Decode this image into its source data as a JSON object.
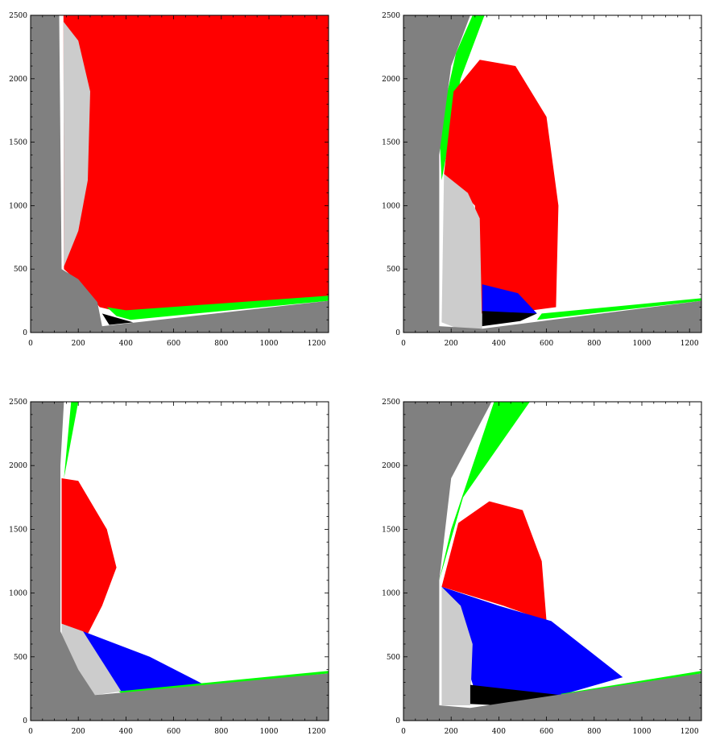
{
  "colors": {
    "background": "#ffffff",
    "solid": "#808080",
    "light_region": "#cccccc",
    "red_region": "#ff0000",
    "green_region": "#00ff00",
    "blue_region": "#0000ff",
    "black_region": "#000000"
  },
  "chart_data": [
    {
      "type": "heatmap",
      "panel": "top-left",
      "xlim": [
        0,
        1250
      ],
      "ylim": [
        0,
        2500
      ],
      "xticks": [
        0,
        200,
        400,
        600,
        800,
        1000,
        1200
      ],
      "yticks": [
        0,
        500,
        1000,
        1500,
        2000,
        2500
      ],
      "xtick_labels": [
        "0",
        "200",
        "400",
        "600",
        "800",
        "1000",
        "1200"
      ],
      "ytick_labels": [
        "0",
        "500",
        "1000",
        "1500",
        "2000",
        "2500"
      ],
      "regions": [
        {
          "color": "red",
          "points": [
            [
              138,
              2500
            ],
            [
              1250,
              2500
            ],
            [
              1250,
              280
            ],
            [
              400,
              150
            ],
            [
              290,
              200
            ],
            [
              200,
              400
            ],
            [
              140,
              500
            ]
          ]
        },
        {
          "color": "light",
          "points": [
            [
              138,
              2450
            ],
            [
              200,
              2300
            ],
            [
              250,
              1900
            ],
            [
              240,
              1200
            ],
            [
              200,
              800
            ],
            [
              140,
              520
            ]
          ]
        },
        {
          "color": "green",
          "points": [
            [
              320,
              200
            ],
            [
              400,
              175
            ],
            [
              1250,
              290
            ],
            [
              1250,
              250
            ],
            [
              420,
              100
            ],
            [
              360,
              130
            ]
          ]
        },
        {
          "color": "black",
          "points": [
            [
              300,
              150
            ],
            [
              330,
              60
            ],
            [
              430,
              80
            ]
          ]
        },
        {
          "color": "solid",
          "points": [
            [
              0,
              2500
            ],
            [
              120,
              2500
            ],
            [
              130,
              500
            ],
            [
              200,
              420
            ],
            [
              280,
              240
            ],
            [
              300,
              50
            ],
            [
              1250,
              250
            ],
            [
              1250,
              0
            ],
            [
              0,
              0
            ]
          ]
        }
      ]
    },
    {
      "type": "heatmap",
      "panel": "top-right",
      "xlim": [
        0,
        1250
      ],
      "ylim": [
        0,
        2500
      ],
      "xticks": [
        0,
        200,
        400,
        600,
        800,
        1000,
        1200
      ],
      "yticks": [
        0,
        500,
        1000,
        1500,
        2000,
        2500
      ],
      "xtick_labels": [
        "0",
        "200",
        "400",
        "600",
        "800",
        "1000",
        "1200"
      ],
      "ytick_labels": [
        "0",
        "500",
        "1000",
        "1500",
        "2000",
        "2500"
      ],
      "regions": [
        {
          "color": "green",
          "points": [
            [
              290,
              2500
            ],
            [
              340,
              2500
            ],
            [
              240,
              2000
            ],
            [
              160,
              1200
            ],
            [
              150,
              1600
            ],
            [
              220,
              2200
            ]
          ]
        },
        {
          "color": "red",
          "points": [
            [
              170,
              1250
            ],
            [
              210,
              1900
            ],
            [
              320,
              2150
            ],
            [
              470,
              2100
            ],
            [
              600,
              1700
            ],
            [
              650,
              1000
            ],
            [
              640,
              200
            ],
            [
              440,
              150
            ],
            [
              320,
              150
            ],
            [
              300,
              1000
            ]
          ]
        },
        {
          "color": "light",
          "points": [
            [
              170,
              1250
            ],
            [
              270,
              1100
            ],
            [
              320,
              900
            ],
            [
              330,
              30
            ],
            [
              230,
              30
            ],
            [
              160,
              80
            ]
          ]
        },
        {
          "color": "blue",
          "points": [
            [
              330,
              380
            ],
            [
              480,
              310
            ],
            [
              560,
              150
            ],
            [
              330,
              160
            ]
          ]
        },
        {
          "color": "black",
          "points": [
            [
              330,
              170
            ],
            [
              560,
              150
            ],
            [
              490,
              90
            ],
            [
              330,
              50
            ]
          ]
        },
        {
          "color": "green",
          "points": [
            [
              580,
              150
            ],
            [
              1250,
              270
            ],
            [
              1250,
              250
            ],
            [
              560,
              100
            ]
          ]
        },
        {
          "color": "solid",
          "points": [
            [
              0,
              2500
            ],
            [
              280,
              2500
            ],
            [
              200,
              2100
            ],
            [
              150,
              1400
            ],
            [
              150,
              50
            ],
            [
              330,
              30
            ],
            [
              1250,
              250
            ],
            [
              1250,
              0
            ],
            [
              0,
              0
            ]
          ]
        }
      ]
    },
    {
      "type": "heatmap",
      "panel": "bottom-left",
      "xlim": [
        0,
        1250
      ],
      "ylim": [
        0,
        2500
      ],
      "xticks": [
        0,
        200,
        400,
        600,
        800,
        1000,
        1200
      ],
      "yticks": [
        0,
        500,
        1000,
        1500,
        2000,
        2500
      ],
      "xtick_labels": [
        "0",
        "200",
        "400",
        "600",
        "800",
        "1000",
        "1200"
      ],
      "ytick_labels": [
        "0",
        "500",
        "1000",
        "1500",
        "2000",
        "2500"
      ],
      "regions": [
        {
          "color": "green",
          "points": [
            [
              170,
              2500
            ],
            [
              200,
              2500
            ],
            [
              150,
              2000
            ],
            [
              140,
              1900
            ]
          ]
        },
        {
          "color": "red",
          "points": [
            [
              130,
              1900
            ],
            [
              200,
              1880
            ],
            [
              320,
              1500
            ],
            [
              360,
              1200
            ],
            [
              300,
              900
            ],
            [
              240,
              680
            ],
            [
              130,
              750
            ]
          ]
        },
        {
          "color": "blue",
          "points": [
            [
              220,
              700
            ],
            [
              500,
              500
            ],
            [
              730,
              280
            ],
            [
              370,
              230
            ],
            [
              300,
              450
            ]
          ]
        },
        {
          "color": "light",
          "points": [
            [
              130,
              760
            ],
            [
              220,
              700
            ],
            [
              380,
              230
            ],
            [
              270,
              200
            ],
            [
              200,
              300
            ],
            [
              130,
              500
            ]
          ]
        },
        {
          "color": "green",
          "points": [
            [
              370,
              230
            ],
            [
              1250,
              390
            ],
            [
              1250,
              370
            ],
            [
              390,
              200
            ]
          ]
        },
        {
          "color": "solid",
          "points": [
            [
              0,
              2500
            ],
            [
              140,
              2500
            ],
            [
              125,
              2000
            ],
            [
              125,
              700
            ],
            [
              200,
              400
            ],
            [
              270,
              200
            ],
            [
              1250,
              370
            ],
            [
              1250,
              0
            ],
            [
              0,
              0
            ]
          ]
        }
      ]
    },
    {
      "type": "heatmap",
      "panel": "bottom-right",
      "xlim": [
        0,
        1250
      ],
      "ylim": [
        0,
        2500
      ],
      "xticks": [
        0,
        200,
        400,
        600,
        800,
        1000,
        1200
      ],
      "yticks": [
        0,
        500,
        1000,
        1500,
        2000,
        2500
      ],
      "xtick_labels": [
        "0",
        "200",
        "400",
        "600",
        "800",
        "1000",
        "1200"
      ],
      "ytick_labels": [
        "0",
        "500",
        "1000",
        "1500",
        "2000",
        "2500"
      ],
      "regions": [
        {
          "color": "green",
          "points": [
            [
              380,
              2500
            ],
            [
              530,
              2500
            ],
            [
              250,
              1750
            ],
            [
              150,
              1100
            ],
            [
              200,
              1500
            ]
          ]
        },
        {
          "color": "red",
          "points": [
            [
              160,
              1050
            ],
            [
              230,
              1550
            ],
            [
              360,
              1720
            ],
            [
              500,
              1650
            ],
            [
              580,
              1250
            ],
            [
              600,
              780
            ],
            [
              420,
              900
            ]
          ]
        },
        {
          "color": "blue",
          "points": [
            [
              160,
              1050
            ],
            [
              400,
              900
            ],
            [
              620,
              780
            ],
            [
              920,
              340
            ],
            [
              660,
              200
            ],
            [
              300,
              230
            ]
          ]
        },
        {
          "color": "light",
          "points": [
            [
              160,
              1050
            ],
            [
              240,
              900
            ],
            [
              290,
              600
            ],
            [
              280,
              120
            ],
            [
              160,
              120
            ]
          ]
        },
        {
          "color": "black",
          "points": [
            [
              280,
              280
            ],
            [
              660,
              200
            ],
            [
              400,
              120
            ],
            [
              280,
              130
            ]
          ]
        },
        {
          "color": "green",
          "points": [
            [
              660,
              210
            ],
            [
              1250,
              390
            ],
            [
              1250,
              370
            ],
            [
              680,
              170
            ]
          ]
        },
        {
          "color": "solid",
          "points": [
            [
              0,
              2500
            ],
            [
              370,
              2500
            ],
            [
              200,
              1900
            ],
            [
              150,
              1100
            ],
            [
              150,
              120
            ],
            [
              280,
              100
            ],
            [
              1250,
              370
            ],
            [
              1250,
              0
            ],
            [
              0,
              0
            ]
          ]
        }
      ]
    }
  ]
}
